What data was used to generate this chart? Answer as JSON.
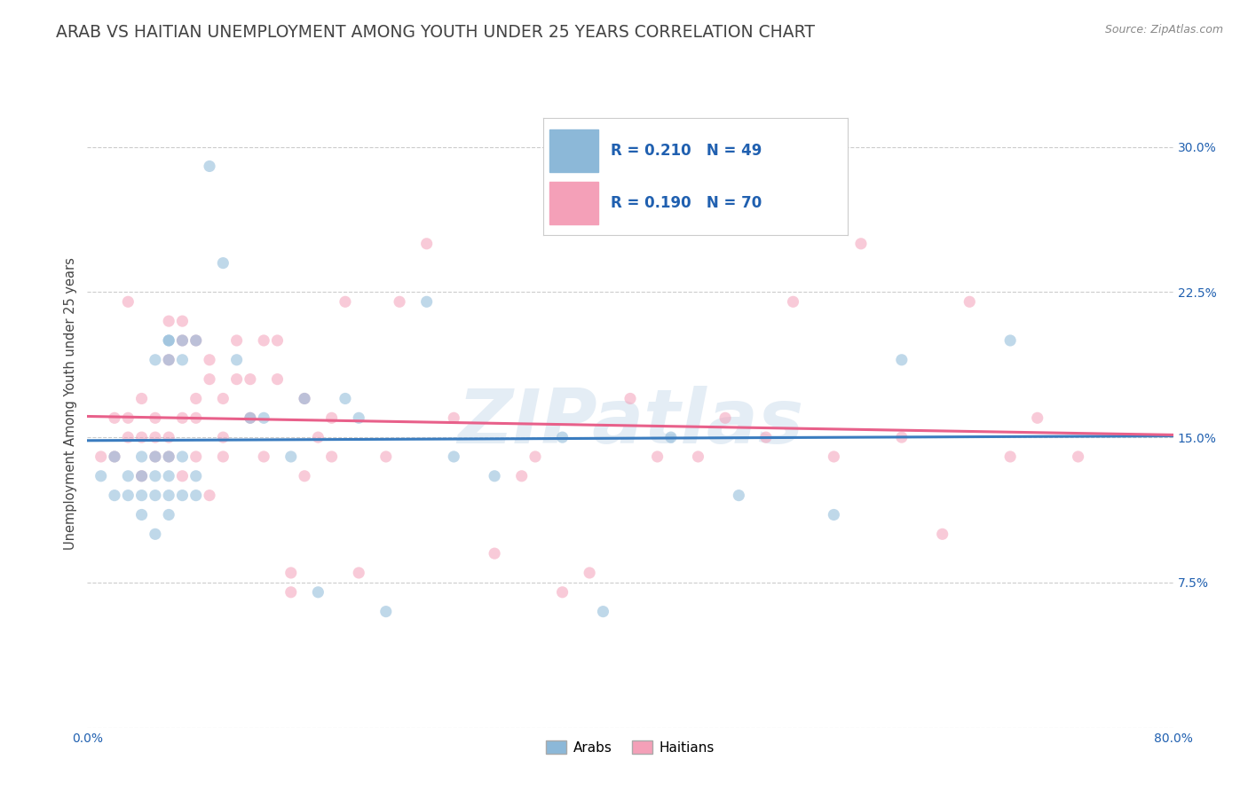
{
  "title": "ARAB VS HAITIAN UNEMPLOYMENT AMONG YOUTH UNDER 25 YEARS CORRELATION CHART",
  "source": "Source: ZipAtlas.com",
  "ylabel": "Unemployment Among Youth under 25 years",
  "yticks": [
    0.0,
    0.075,
    0.15,
    0.225,
    0.3
  ],
  "ytick_labels": [
    "",
    "7.5%",
    "15.0%",
    "22.5%",
    "30.0%"
  ],
  "xlim": [
    0.0,
    0.8
  ],
  "ylim": [
    0.0,
    0.335
  ],
  "legend_arab_r": "R = 0.210",
  "legend_arab_n": "N = 49",
  "legend_haitian_r": "R = 0.190",
  "legend_haitian_n": "N = 70",
  "arab_color": "#8cb8d8",
  "haitian_color": "#f4a0b8",
  "arab_line_color": "#3a7cbf",
  "haitian_line_color": "#e8608a",
  "watermark": "ZIPatlas",
  "arab_x": [
    0.01,
    0.02,
    0.02,
    0.03,
    0.03,
    0.04,
    0.04,
    0.04,
    0.04,
    0.05,
    0.05,
    0.05,
    0.05,
    0.05,
    0.06,
    0.06,
    0.06,
    0.06,
    0.06,
    0.06,
    0.06,
    0.07,
    0.07,
    0.07,
    0.07,
    0.08,
    0.08,
    0.08,
    0.09,
    0.1,
    0.11,
    0.12,
    0.13,
    0.15,
    0.16,
    0.17,
    0.19,
    0.2,
    0.22,
    0.25,
    0.27,
    0.3,
    0.35,
    0.38,
    0.43,
    0.48,
    0.55,
    0.6,
    0.68
  ],
  "arab_y": [
    0.13,
    0.12,
    0.14,
    0.12,
    0.13,
    0.11,
    0.12,
    0.13,
    0.14,
    0.1,
    0.12,
    0.13,
    0.14,
    0.19,
    0.11,
    0.12,
    0.13,
    0.14,
    0.19,
    0.2,
    0.2,
    0.12,
    0.14,
    0.19,
    0.2,
    0.12,
    0.13,
    0.2,
    0.29,
    0.24,
    0.19,
    0.16,
    0.16,
    0.14,
    0.17,
    0.07,
    0.17,
    0.16,
    0.06,
    0.22,
    0.14,
    0.13,
    0.15,
    0.06,
    0.15,
    0.12,
    0.11,
    0.19,
    0.2
  ],
  "haitian_x": [
    0.01,
    0.02,
    0.02,
    0.03,
    0.03,
    0.03,
    0.04,
    0.04,
    0.04,
    0.05,
    0.05,
    0.05,
    0.06,
    0.06,
    0.06,
    0.06,
    0.07,
    0.07,
    0.07,
    0.07,
    0.08,
    0.08,
    0.08,
    0.08,
    0.09,
    0.09,
    0.09,
    0.1,
    0.1,
    0.1,
    0.11,
    0.11,
    0.12,
    0.12,
    0.13,
    0.13,
    0.14,
    0.14,
    0.15,
    0.15,
    0.16,
    0.16,
    0.17,
    0.18,
    0.18,
    0.19,
    0.2,
    0.22,
    0.23,
    0.25,
    0.27,
    0.3,
    0.32,
    0.33,
    0.35,
    0.37,
    0.4,
    0.42,
    0.45,
    0.47,
    0.5,
    0.52,
    0.55,
    0.57,
    0.6,
    0.63,
    0.65,
    0.68,
    0.7,
    0.73
  ],
  "haitian_y": [
    0.14,
    0.14,
    0.16,
    0.15,
    0.16,
    0.22,
    0.13,
    0.15,
    0.17,
    0.14,
    0.15,
    0.16,
    0.14,
    0.15,
    0.19,
    0.21,
    0.13,
    0.16,
    0.2,
    0.21,
    0.14,
    0.16,
    0.17,
    0.2,
    0.12,
    0.18,
    0.19,
    0.14,
    0.15,
    0.17,
    0.18,
    0.2,
    0.16,
    0.18,
    0.2,
    0.14,
    0.18,
    0.2,
    0.07,
    0.08,
    0.13,
    0.17,
    0.15,
    0.16,
    0.14,
    0.22,
    0.08,
    0.14,
    0.22,
    0.25,
    0.16,
    0.09,
    0.13,
    0.14,
    0.07,
    0.08,
    0.17,
    0.14,
    0.14,
    0.16,
    0.15,
    0.22,
    0.14,
    0.25,
    0.15,
    0.1,
    0.22,
    0.14,
    0.16,
    0.14
  ],
  "background_color": "#ffffff",
  "grid_color": "#cccccc",
  "legend_text_color": "#2060b0",
  "title_color": "#444444",
  "title_fontsize": 13.5,
  "axis_label_fontsize": 10.5,
  "tick_fontsize": 10,
  "marker_size": 90,
  "marker_alpha": 0.55,
  "line_width": 2.2
}
